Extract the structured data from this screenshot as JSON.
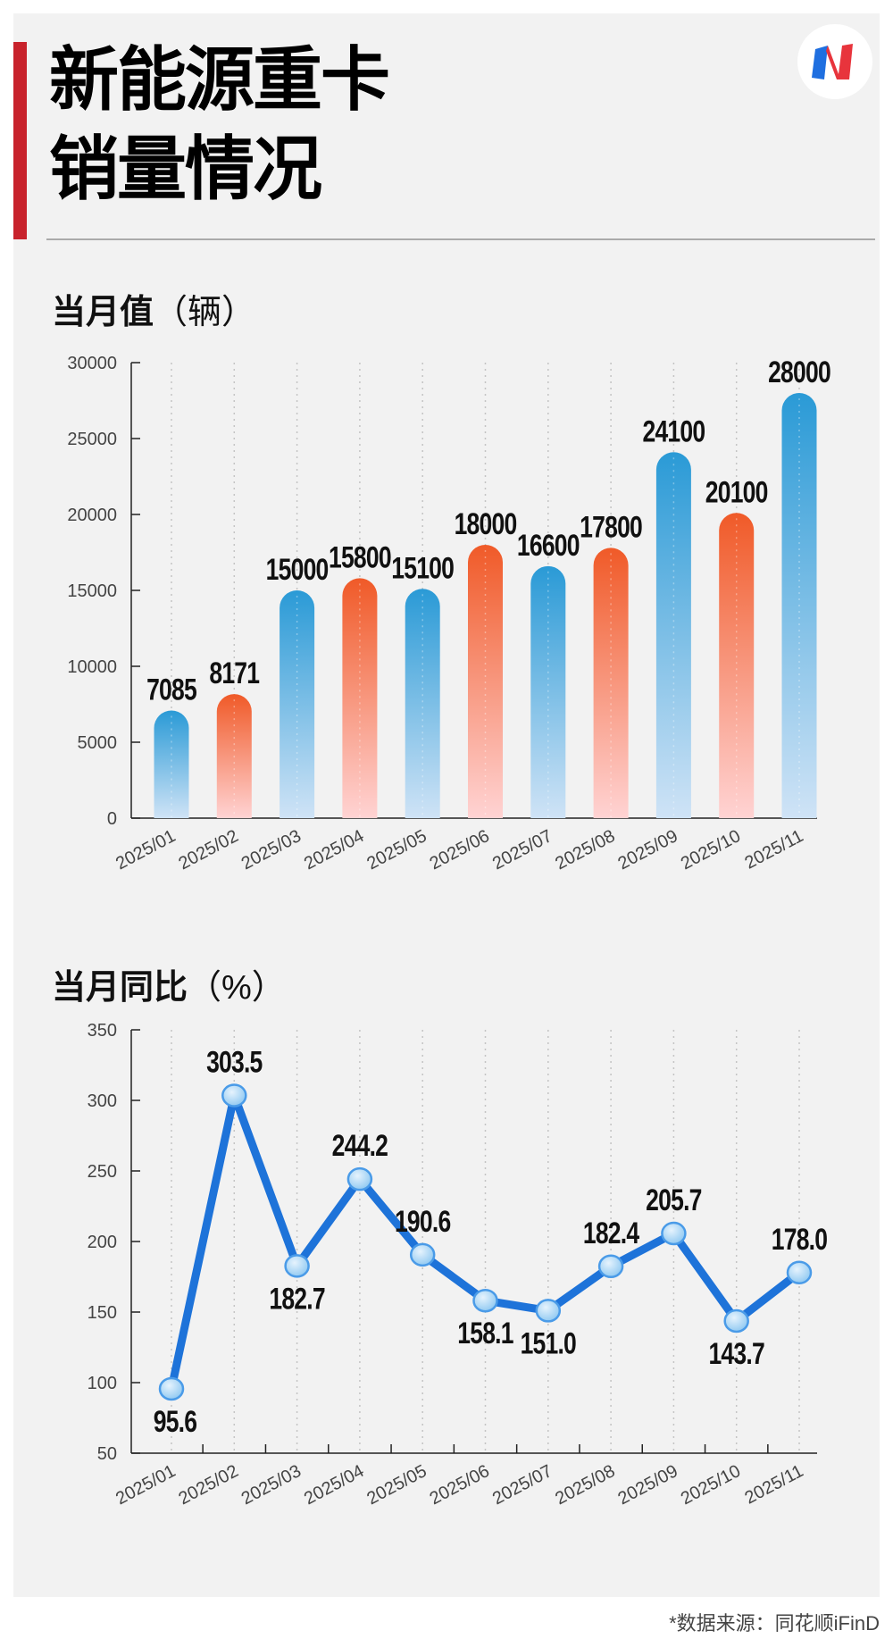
{
  "header": {
    "title_line1": "新能源重卡",
    "title_line2": "销量情况",
    "logo": "brand-logo"
  },
  "colors": {
    "accent_red": "#c8232c",
    "bar_blue": "#2a9ad6",
    "bar_orange": "#f05a28",
    "line_blue": "#1e73d9"
  },
  "footer": {
    "source": "*数据来源：同花顺iFinD"
  },
  "chart_data": [
    {
      "type": "bar",
      "title": "当月值",
      "unit": "（辆）",
      "categories": [
        "2025/01",
        "2025/02",
        "2025/03",
        "2025/04",
        "2025/05",
        "2025/06",
        "2025/07",
        "2025/08",
        "2025/09",
        "2025/10",
        "2025/11"
      ],
      "values": [
        7085,
        8171,
        15000,
        15800,
        15100,
        18000,
        16600,
        17800,
        24100,
        20100,
        28000
      ],
      "labels": [
        "7085",
        "8171",
        "15000",
        "15800",
        "15100",
        "18000",
        "16600",
        "17800",
        "24100",
        "20100",
        "28000"
      ],
      "ylim": [
        0,
        30000
      ],
      "yticks": [
        "0",
        "5000",
        "10000",
        "15000",
        "20000",
        "25000",
        "30000"
      ],
      "bar_colors": "alternating blue/orange gradient",
      "grid": "vertical dotted"
    },
    {
      "type": "line",
      "title": "当月同比",
      "unit": "（%）",
      "categories": [
        "2025/01",
        "2025/02",
        "2025/03",
        "2025/04",
        "2025/05",
        "2025/06",
        "2025/07",
        "2025/08",
        "2025/09",
        "2025/10",
        "2025/11"
      ],
      "values": [
        95.6,
        303.5,
        182.7,
        244.2,
        190.6,
        158.1,
        151.0,
        182.4,
        205.7,
        143.7,
        178.0
      ],
      "labels": [
        "95.6",
        "303.5",
        "182.7",
        "244.2",
        "190.6",
        "158.1",
        "151.0",
        "182.4",
        "205.7",
        "143.7",
        "178.0"
      ],
      "ylim": [
        50,
        350
      ],
      "yticks": [
        "50",
        "100",
        "150",
        "200",
        "250",
        "300",
        "350"
      ],
      "grid": "vertical dotted"
    }
  ]
}
